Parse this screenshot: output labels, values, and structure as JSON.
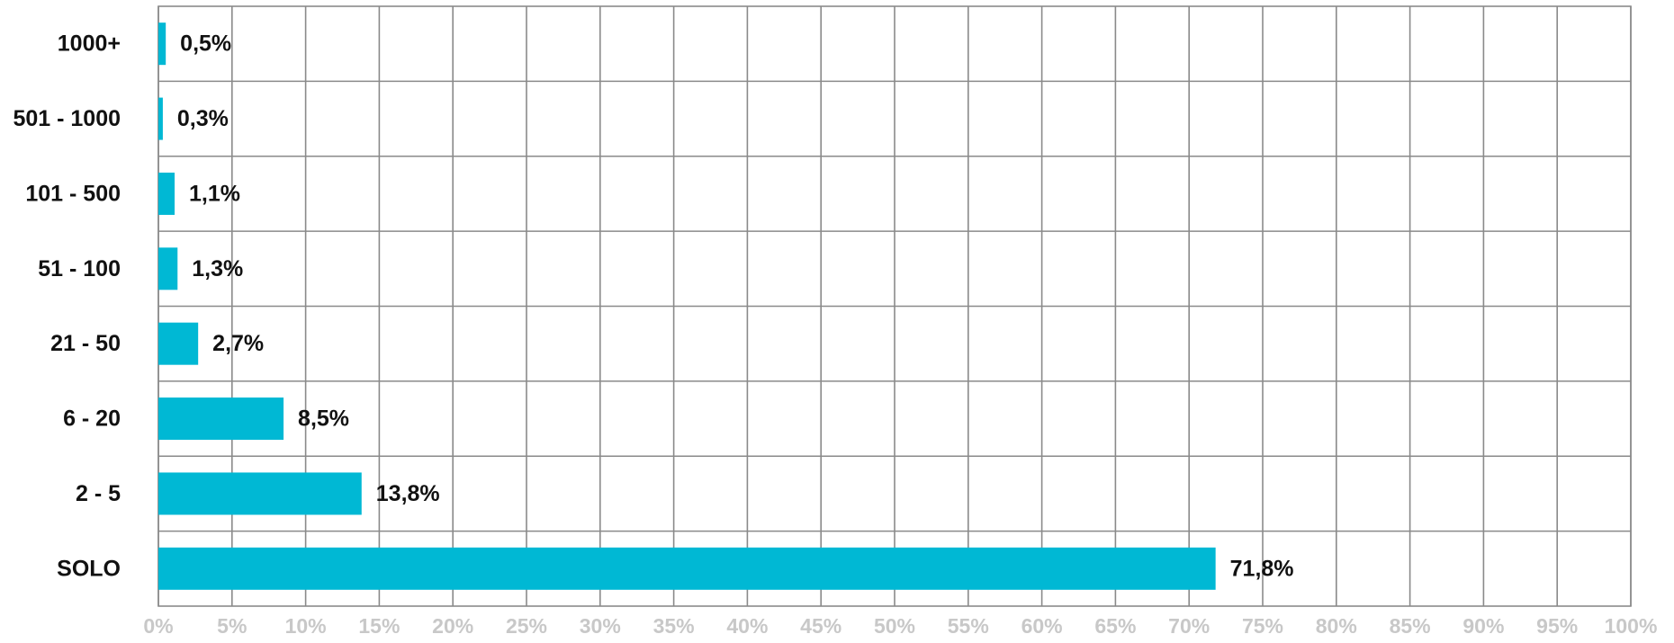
{
  "chart_data": {
    "type": "bar",
    "orientation": "horizontal",
    "categories": [
      "1000+",
      "501 - 1000",
      "101 - 500",
      "51 - 100",
      "21 - 50",
      "6 - 20",
      "2 - 5",
      "SOLO"
    ],
    "values": [
      0.5,
      0.3,
      1.1,
      1.3,
      2.7,
      8.5,
      13.8,
      71.8
    ],
    "value_labels": [
      "0,5%",
      "0,3%",
      "1,1%",
      "1,3%",
      "2,7%",
      "8,5%",
      "13,8%",
      "71,8%"
    ],
    "xlim": [
      0,
      100
    ],
    "x_ticks": [
      0,
      5,
      10,
      15,
      20,
      25,
      30,
      35,
      40,
      45,
      50,
      55,
      60,
      65,
      70,
      75,
      80,
      85,
      90,
      95,
      100
    ],
    "x_tick_labels": [
      "0%",
      "5%",
      "10%",
      "15%",
      "20%",
      "25%",
      "30%",
      "35%",
      "40%",
      "45%",
      "50%",
      "55%",
      "60%",
      "65%",
      "70%",
      "75%",
      "80%",
      "85%",
      "90%",
      "95%",
      "100%"
    ],
    "grid": true,
    "bar_color": "#00b8d4",
    "title": "",
    "xlabel": "",
    "ylabel": ""
  }
}
